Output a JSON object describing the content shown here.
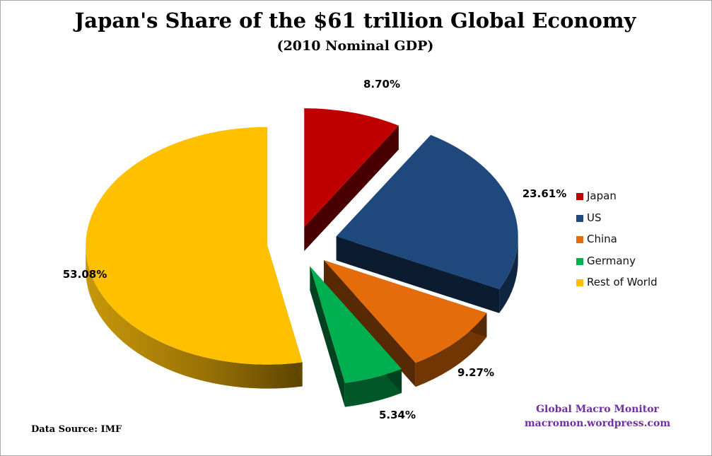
{
  "chart_data": {
    "type": "pie",
    "title": "Japan's Share of the $61 trillion Global Economy",
    "subtitle": "(2010 Nominal GDP)",
    "categories": [
      "Japan",
      "US",
      "China",
      "Germany",
      "Rest of World"
    ],
    "values": [
      8.7,
      23.61,
      9.27,
      5.34,
      53.08
    ],
    "data_labels": [
      "8.70%",
      "23.61%",
      "9.27%",
      "5.34%",
      "53.08%"
    ],
    "colors": [
      "#c00000",
      "#1f497d",
      "#e46c0a",
      "#00b050",
      "#ffc000"
    ],
    "exploded": true,
    "style": "3d",
    "legend": {
      "position": "right",
      "entries": [
        "Japan",
        "US",
        "China",
        "Germany",
        "Rest of World"
      ]
    }
  },
  "footer": {
    "source": "Data Source:   IMF",
    "credit_line1": "Global Macro Monitor",
    "credit_line2": "macromon.wordpress.com"
  }
}
